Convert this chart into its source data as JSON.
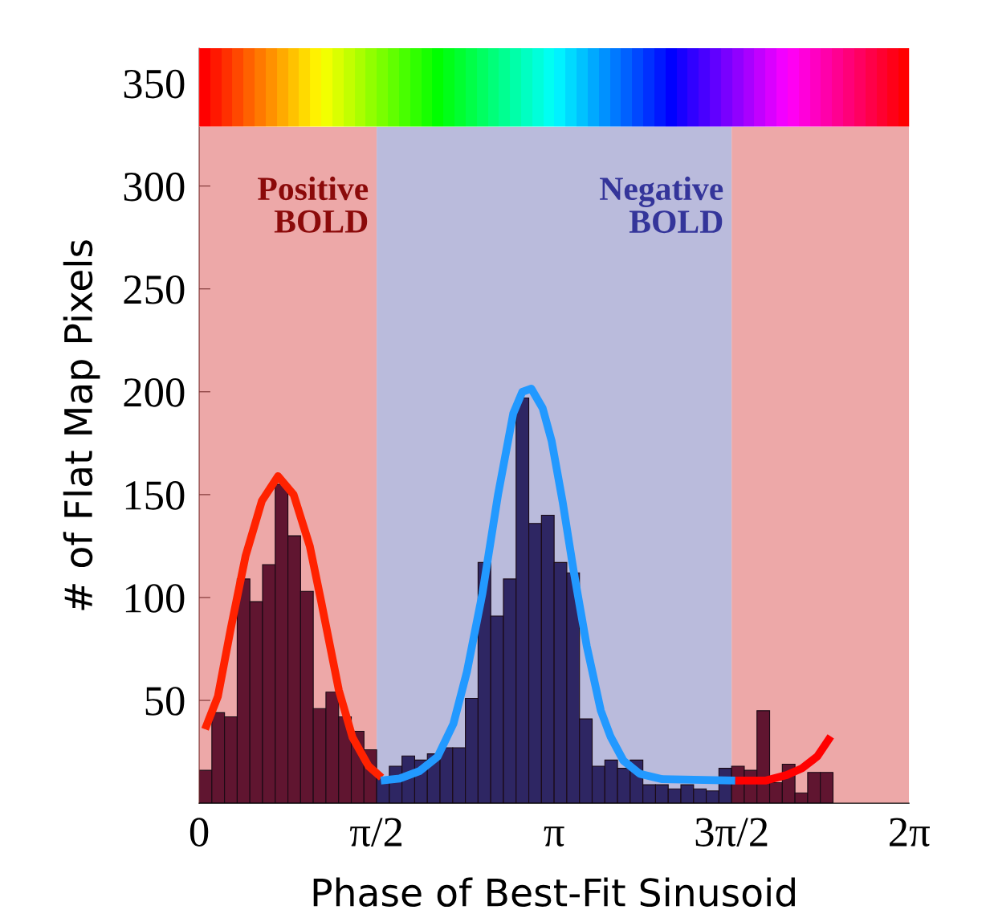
{
  "chart_data": {
    "type": "histogram",
    "xlabel": "Phase of Best-Fit Sinusoid",
    "ylabel": "# of Flat Map Pixels",
    "bins": [
      0,
      0.1122,
      0.2244,
      0.3366,
      0.4488,
      0.561,
      0.6732,
      0.7854,
      0.8976,
      1.0098,
      1.122,
      1.2342,
      1.3464,
      1.4586,
      1.5708,
      1.683,
      1.7952,
      1.9074,
      2.0196,
      2.1318,
      2.244,
      2.3562,
      2.4684,
      2.5806,
      2.6928,
      2.805,
      2.9172,
      3.0294,
      3.1416,
      3.2538,
      3.366,
      3.4782,
      3.5904,
      3.7026,
      3.8148,
      3.927,
      4.0392,
      4.1514,
      4.2636,
      4.3758,
      4.488,
      4.6002,
      4.7124,
      4.8246,
      4.9368,
      5.049,
      5.1612,
      5.2734,
      5.3856,
      5.4978,
      5.61
    ],
    "values": [
      16,
      44,
      42,
      109,
      98,
      116,
      155,
      130,
      103,
      46,
      54,
      42,
      35,
      26,
      12,
      18,
      23,
      21,
      24,
      27,
      27,
      51,
      117,
      91,
      109,
      197,
      136,
      140,
      117,
      112,
      41,
      18,
      21,
      17,
      21,
      9,
      9,
      7,
      9,
      7,
      6,
      17,
      18,
      16,
      45,
      10,
      19,
      5,
      15,
      15
    ],
    "colors": [
      "#601530",
      "#601530",
      "#601530",
      "#601530",
      "#601530",
      "#601530",
      "#601530",
      "#601530",
      "#601530",
      "#601530",
      "#601530",
      "#601530",
      "#601530",
      "#601530",
      "#2e2663",
      "#2e2663",
      "#2e2663",
      "#2e2663",
      "#2e2663",
      "#2e2663",
      "#2e2663",
      "#2e2663",
      "#2e2663",
      "#2e2663",
      "#2e2663",
      "#2e2663",
      "#2e2663",
      "#2e2663",
      "#2e2663",
      "#2e2663",
      "#2e2663",
      "#2e2663",
      "#2e2663",
      "#2e2663",
      "#2e2663",
      "#2e2663",
      "#2e2663",
      "#2e2663",
      "#2e2663",
      "#2e2663",
      "#2e2663",
      "#2e2663",
      "#601530",
      "#601530",
      "#601530",
      "#601530",
      "#601530",
      "#601530",
      "#601530",
      "#601530"
    ],
    "series": [
      {
        "type": "line",
        "color": "#ff2200",
        "x": [
          0.052,
          0.166,
          0.28,
          0.41,
          0.555,
          0.698,
          0.836,
          0.979,
          1.08,
          1.236,
          1.357,
          1.5,
          1.614
        ],
        "values": [
          36,
          52,
          85,
          120,
          147,
          159,
          150,
          125,
          98,
          55,
          32,
          18,
          12.5
        ]
      },
      {
        "type": "line",
        "color": "#2299ff",
        "x": [
          1.608,
          1.774,
          1.95,
          2.11,
          2.25,
          2.37,
          2.507,
          2.645,
          2.78,
          2.86,
          2.94,
          3.04,
          3.12,
          3.217,
          3.314,
          3.43,
          3.555,
          3.64,
          3.755,
          3.9,
          4.1,
          4.745
        ],
        "values": [
          11,
          12,
          15.6,
          22.6,
          38.6,
          64,
          102,
          150,
          189.5,
          200,
          201.5,
          192,
          176,
          146.5,
          113,
          76.5,
          45,
          32.5,
          20.7,
          14.3,
          11.7,
          11
        ]
      },
      {
        "type": "line",
        "color": "#ff0000",
        "x": [
          4.745,
          5.01,
          5.2,
          5.335,
          5.47,
          5.59
        ],
        "values": [
          11,
          11,
          13.7,
          17,
          22.7,
          32.5
        ]
      }
    ],
    "bands": [
      {
        "axis": "x",
        "from": 0,
        "to": 1.5708,
        "label": "Positive\nBOLD",
        "color": "#eda8a8"
      },
      {
        "axis": "x",
        "from": 1.5708,
        "to": 4.7124,
        "label": "Negative\nBOLD",
        "color": "#babbdc"
      },
      {
        "axis": "x",
        "from": 4.7124,
        "to": 6.2832,
        "color": "#eda8a8"
      }
    ],
    "xlim": [
      0,
      6.2832
    ],
    "xticks": [
      {
        "value": 0,
        "label": "0"
      },
      {
        "value": 1.5708,
        "label": "π/2"
      },
      {
        "value": 3.1416,
        "label": "π"
      },
      {
        "value": 4.7124,
        "label": "3π/2"
      },
      {
        "value": 6.2832,
        "label": "2π"
      }
    ],
    "ylim": [
      0,
      367
    ],
    "yticks": [
      50,
      100,
      150,
      200,
      250,
      300,
      350
    ],
    "line_style": "solid",
    "marker": "none"
  }
}
